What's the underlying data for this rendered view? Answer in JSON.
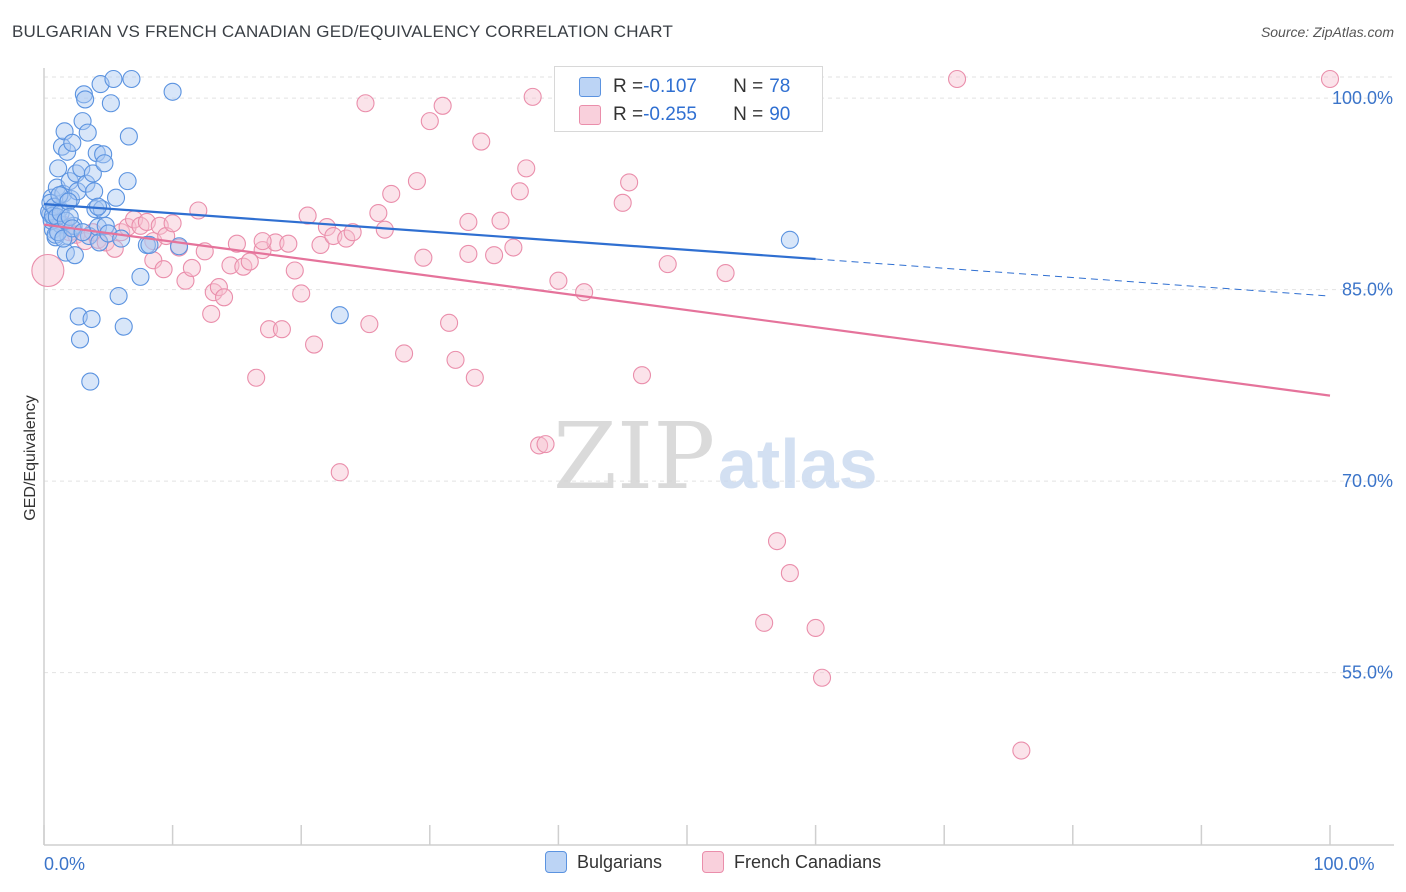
{
  "title": "BULGARIAN VS FRENCH CANADIAN GED/EQUIVALENCY CORRELATION CHART",
  "source": "Source: ZipAtlas.com",
  "watermark": {
    "zip": "ZIP",
    "atlas": "atlas"
  },
  "legend_top": {
    "rows": [
      {
        "r_label": "R = ",
        "r_value": "-0.107",
        "n_label": "N = ",
        "n_value": "78"
      },
      {
        "r_label": "R = ",
        "r_value": "-0.255",
        "n_label": "N = ",
        "n_value": "90"
      }
    ]
  },
  "legend_bottom": {
    "items": [
      "Bulgarians",
      "French Canadians"
    ]
  },
  "colors": {
    "blue_fill": "#a9c8f2",
    "blue_stroke": "#5b93e0",
    "blue_line": "#2f6fd1",
    "pink_fill": "#f6c0d0",
    "pink_stroke": "#ea8eab",
    "pink_line": "#e5739b",
    "tick_text": "#3b74c9",
    "grid": "#e2e2e2"
  },
  "chart_data": {
    "type": "scatter",
    "xlabel": "",
    "ylabel": "GED/Equivalency",
    "xlim": [
      0,
      100
    ],
    "ylim": [
      40,
      100
    ],
    "x_tick_labels": [
      {
        "value": 0,
        "label": "0.0%"
      },
      {
        "value": 100,
        "label": "100.0%"
      }
    ],
    "y_tick_labels": [
      {
        "value": 98.5,
        "label": "100.0%"
      },
      {
        "value": 83.5,
        "label": "85.0%"
      },
      {
        "value": 68.5,
        "label": "70.0%"
      },
      {
        "value": 53.5,
        "label": "55.0%"
      }
    ],
    "series": [
      {
        "name": "Bulgarians",
        "trend": {
          "x0": 0,
          "y0": 90.2,
          "x1": 60,
          "y1": 85.9,
          "dash_to_x": 100,
          "dash_to_y": 83.0
        },
        "points": [
          [
            0.5,
            89.4
          ],
          [
            0.6,
            90.7
          ],
          [
            0.7,
            88.2
          ],
          [
            0.8,
            89.0
          ],
          [
            0.9,
            87.6
          ],
          [
            1.0,
            91.5
          ],
          [
            1.1,
            93.0
          ],
          [
            1.2,
            89.8
          ],
          [
            1.3,
            88.6
          ],
          [
            1.4,
            94.7
          ],
          [
            1.5,
            91.0
          ],
          [
            1.6,
            95.9
          ],
          [
            1.7,
            86.4
          ],
          [
            1.8,
            94.3
          ],
          [
            1.9,
            87.7
          ],
          [
            2.0,
            92.0
          ],
          [
            2.1,
            90.6
          ],
          [
            2.2,
            95.0
          ],
          [
            2.3,
            88.5
          ],
          [
            2.4,
            86.2
          ],
          [
            2.5,
            92.6
          ],
          [
            2.6,
            91.2
          ],
          [
            2.7,
            81.4
          ],
          [
            2.8,
            79.6
          ],
          [
            2.9,
            93.0
          ],
          [
            3.0,
            96.7
          ],
          [
            3.1,
            98.8
          ],
          [
            3.2,
            98.4
          ],
          [
            3.3,
            91.8
          ],
          [
            3.4,
            95.8
          ],
          [
            3.5,
            87.7
          ],
          [
            3.6,
            76.3
          ],
          [
            3.7,
            81.2
          ],
          [
            3.8,
            92.6
          ],
          [
            3.9,
            91.2
          ],
          [
            4.0,
            89.8
          ],
          [
            4.1,
            94.2
          ],
          [
            4.2,
            88.4
          ],
          [
            4.3,
            87.2
          ],
          [
            4.4,
            99.6
          ],
          [
            4.5,
            89.8
          ],
          [
            4.6,
            94.1
          ],
          [
            4.7,
            93.4
          ],
          [
            4.8,
            88.5
          ],
          [
            5.0,
            87.9
          ],
          [
            5.2,
            98.1
          ],
          [
            5.4,
            100.0
          ],
          [
            5.6,
            90.7
          ],
          [
            5.8,
            83.0
          ],
          [
            6.0,
            87.5
          ],
          [
            6.2,
            80.6
          ],
          [
            6.6,
            95.5
          ],
          [
            6.8,
            100.0
          ],
          [
            7.5,
            84.5
          ],
          [
            6.5,
            92.0
          ],
          [
            8.0,
            87.0
          ],
          [
            8.2,
            87.0
          ],
          [
            10.0,
            99.0
          ],
          [
            10.5,
            86.9
          ],
          [
            23.0,
            81.5
          ],
          [
            58.0,
            87.4
          ],
          [
            0.4,
            89.6
          ],
          [
            0.5,
            90.3
          ],
          [
            0.6,
            88.9
          ],
          [
            0.7,
            89.3
          ],
          [
            0.8,
            90.0
          ],
          [
            0.9,
            87.8
          ],
          [
            1.0,
            89.2
          ],
          [
            1.1,
            88.0
          ],
          [
            1.2,
            90.9
          ],
          [
            1.3,
            89.5
          ],
          [
            1.5,
            87.5
          ],
          [
            1.7,
            88.9
          ],
          [
            1.9,
            90.4
          ],
          [
            2.0,
            89.2
          ],
          [
            2.2,
            88.3
          ],
          [
            3.0,
            88.0
          ],
          [
            4.2,
            90.0
          ]
        ]
      },
      {
        "name": "French Canadians",
        "trend": {
          "x0": 0,
          "y0": 88.6,
          "x1": 100,
          "y1": 75.2
        },
        "points": [
          [
            0.3,
            85.0
          ],
          [
            1.5,
            88.6
          ],
          [
            2.0,
            88.0
          ],
          [
            2.5,
            87.8
          ],
          [
            3.2,
            87.3
          ],
          [
            3.8,
            88.0
          ],
          [
            4.2,
            87.4
          ],
          [
            4.8,
            87.2
          ],
          [
            5.5,
            86.7
          ],
          [
            6.0,
            88.0
          ],
          [
            6.5,
            88.4
          ],
          [
            7.0,
            89.0
          ],
          [
            7.5,
            88.5
          ],
          [
            8.0,
            88.8
          ],
          [
            8.5,
            87.3
          ],
          [
            9.0,
            88.5
          ],
          [
            9.5,
            87.7
          ],
          [
            10.0,
            88.7
          ],
          [
            8.5,
            85.8
          ],
          [
            9.3,
            85.1
          ],
          [
            10.5,
            86.8
          ],
          [
            11.0,
            84.2
          ],
          [
            11.5,
            85.2
          ],
          [
            12.0,
            89.7
          ],
          [
            12.5,
            86.5
          ],
          [
            13.0,
            81.6
          ],
          [
            13.2,
            83.3
          ],
          [
            13.6,
            83.7
          ],
          [
            14.0,
            82.9
          ],
          [
            14.5,
            85.4
          ],
          [
            15.0,
            87.1
          ],
          [
            15.5,
            85.3
          ],
          [
            16.0,
            85.7
          ],
          [
            16.5,
            76.6
          ],
          [
            17.0,
            86.6
          ],
          [
            17.5,
            80.4
          ],
          [
            18.0,
            87.2
          ],
          [
            18.5,
            80.4
          ],
          [
            19.0,
            87.1
          ],
          [
            19.5,
            85.0
          ],
          [
            20.0,
            83.2
          ],
          [
            20.5,
            89.3
          ],
          [
            21.0,
            79.2
          ],
          [
            21.5,
            87.0
          ],
          [
            22.0,
            88.4
          ],
          [
            22.5,
            87.7
          ],
          [
            23.0,
            69.2
          ],
          [
            23.5,
            87.5
          ],
          [
            24.0,
            88.0
          ],
          [
            25.0,
            98.1
          ],
          [
            25.3,
            80.8
          ],
          [
            26.0,
            89.5
          ],
          [
            26.5,
            88.2
          ],
          [
            27.0,
            91.0
          ],
          [
            28.0,
            78.5
          ],
          [
            29.0,
            92.0
          ],
          [
            29.5,
            86.0
          ],
          [
            30.0,
            96.7
          ],
          [
            31.0,
            97.9
          ],
          [
            31.5,
            80.9
          ],
          [
            32.0,
            78.0
          ],
          [
            33.0,
            88.8
          ],
          [
            33.5,
            76.6
          ],
          [
            33.0,
            86.3
          ],
          [
            34.0,
            95.1
          ],
          [
            35.0,
            86.2
          ],
          [
            35.5,
            88.9
          ],
          [
            36.5,
            86.8
          ],
          [
            37.0,
            91.2
          ],
          [
            37.5,
            93.0
          ],
          [
            38.0,
            98.6
          ],
          [
            38.5,
            71.3
          ],
          [
            39.0,
            71.4
          ],
          [
            40.0,
            84.2
          ],
          [
            42.0,
            83.3
          ],
          [
            45.0,
            90.3
          ],
          [
            45.5,
            91.9
          ],
          [
            46.5,
            76.8
          ],
          [
            48.0,
            100.0
          ],
          [
            48.5,
            85.5
          ],
          [
            53.0,
            84.8
          ],
          [
            57.0,
            63.8
          ],
          [
            58.0,
            61.3
          ],
          [
            56.0,
            57.4
          ],
          [
            60.0,
            57.0
          ],
          [
            60.5,
            53.1
          ],
          [
            71.0,
            100.0
          ],
          [
            76.0,
            47.4
          ],
          [
            100.0,
            100.0
          ],
          [
            17.0,
            87.3
          ]
        ]
      }
    ]
  }
}
